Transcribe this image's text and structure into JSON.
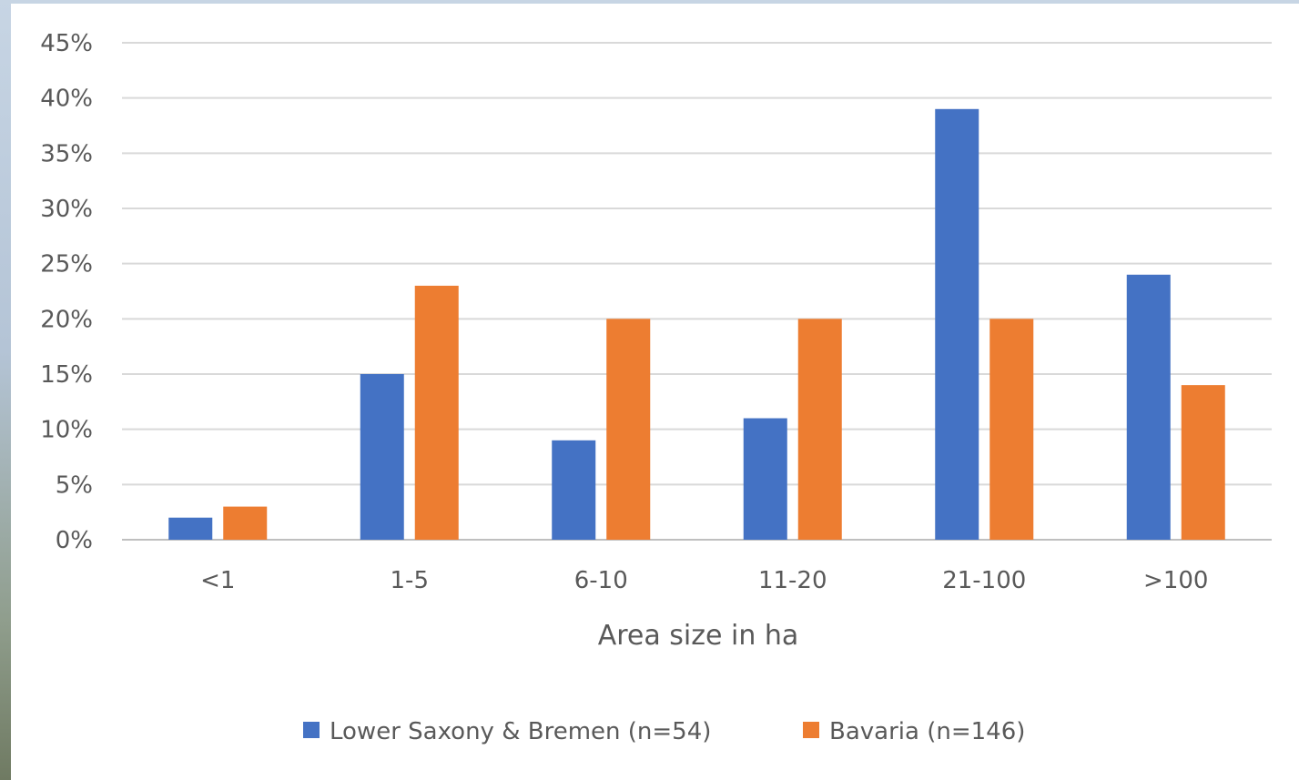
{
  "chart_data": {
    "type": "bar",
    "categories": [
      "<1",
      "1-5",
      "6-10",
      "11-20",
      "21-100",
      ">100"
    ],
    "series": [
      {
        "name": "Lower Saxony & Bremen (n=54)",
        "values": [
          2,
          15,
          9,
          11,
          39,
          24
        ],
        "color": "#4472c4"
      },
      {
        "name": "Bavaria (n=146)",
        "values": [
          3,
          23,
          20,
          20,
          20,
          14
        ],
        "color": "#ed7d31"
      }
    ],
    "yticks": [
      "0%",
      "5%",
      "10%",
      "15%",
      "20%",
      "25%",
      "30%",
      "35%",
      "40%",
      "45%"
    ],
    "ylim": [
      0,
      45
    ],
    "xlabel": "Area size in ha",
    "ylabel": "",
    "grid": true,
    "legend_position": "bottom"
  }
}
